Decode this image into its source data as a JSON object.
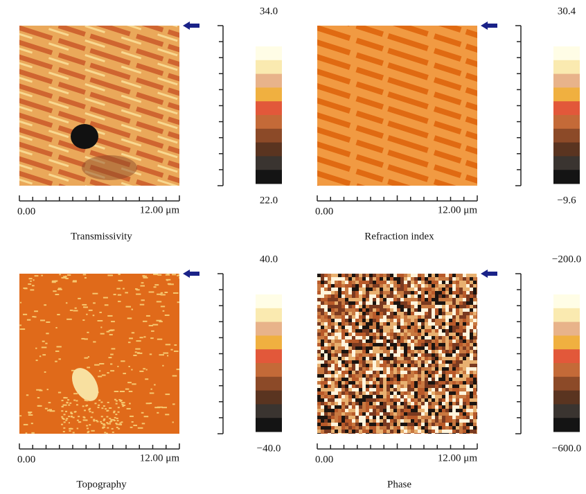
{
  "panels": [
    {
      "title": "Transmissivity",
      "x_start": "0.00",
      "x_end": "12.00 μm",
      "scale_max": "34.0",
      "scale_min": "22.0"
    },
    {
      "title": "Refraction index",
      "x_start": "0.00",
      "x_end": "12.00 μm",
      "scale_max": "30.4",
      "scale_min": "−9.6"
    },
    {
      "title": "Topography",
      "x_start": "0.00",
      "x_end": "12.00 μm",
      "scale_max": "40.0",
      "scale_min": "−40.0"
    },
    {
      "title": "Phase",
      "x_start": "0.00",
      "x_end": "12.00 μm",
      "scale_max": "−200.0",
      "scale_min": "−600.0"
    }
  ]
}
